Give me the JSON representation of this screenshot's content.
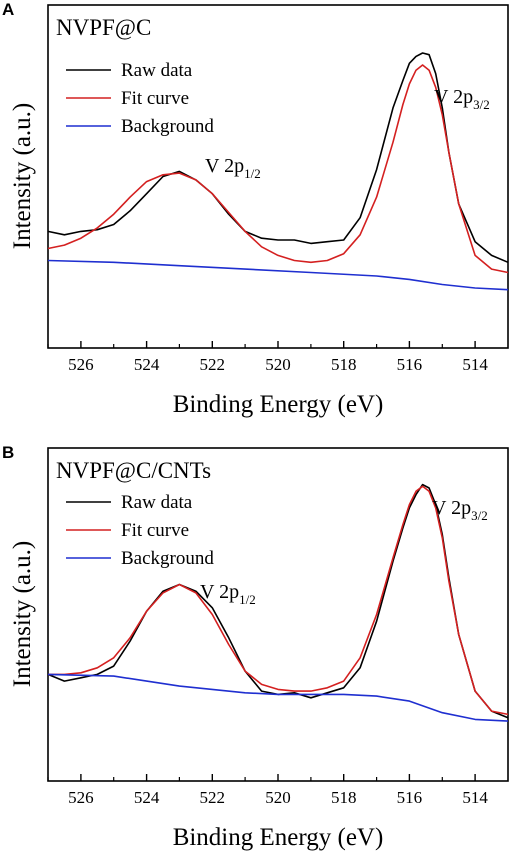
{
  "colors": {
    "raw": "#000000",
    "fit": "#d42020",
    "background": "#1f2fd0",
    "axes": "#000000"
  },
  "chart_data": [
    {
      "type": "line",
      "panel": "A",
      "sample_label": "NVPF@C",
      "xlabel": "Binding Energy (eV)",
      "ylabel": "Intensity (a.u.)",
      "xlim": [
        527,
        513
      ],
      "x_reversed": true,
      "ylim": [
        0,
        1
      ],
      "yticks_shown": false,
      "xticks": [
        526,
        524,
        522,
        520,
        518,
        516,
        514
      ],
      "legend": {
        "position": "top-left",
        "entries": [
          "Raw data",
          "Fit curve",
          "Background"
        ]
      },
      "annotations": [
        {
          "base": "V 2p",
          "sub": "1/2",
          "x": 523.0,
          "y": 0.505
        },
        {
          "base": "V 2p",
          "sub": "3/2",
          "x": 515.6,
          "y": 0.805
        }
      ],
      "series": [
        {
          "name": "Raw data",
          "color_key": "raw",
          "x": [
            527,
            526.5,
            526,
            525.5,
            525,
            524.5,
            524,
            523.5,
            523,
            522.5,
            522,
            521.5,
            521,
            520.5,
            520,
            519.5,
            519,
            518.5,
            518,
            517.5,
            517,
            516.5,
            516.2,
            516,
            515.8,
            515.6,
            515.4,
            515.2,
            515,
            514.8,
            514.5,
            514,
            513.5,
            513
          ],
          "y": [
            0.34,
            0.33,
            0.34,
            0.345,
            0.36,
            0.4,
            0.45,
            0.5,
            0.515,
            0.49,
            0.45,
            0.39,
            0.34,
            0.32,
            0.315,
            0.315,
            0.305,
            0.31,
            0.315,
            0.38,
            0.52,
            0.7,
            0.78,
            0.83,
            0.85,
            0.86,
            0.855,
            0.8,
            0.7,
            0.57,
            0.42,
            0.31,
            0.27,
            0.25
          ]
        },
        {
          "name": "Fit curve",
          "color_key": "fit",
          "x": [
            527,
            526.5,
            526,
            525.5,
            525,
            524.5,
            524,
            523.5,
            523,
            522.5,
            522,
            521.5,
            521,
            520.5,
            520,
            519.5,
            519,
            518.5,
            518,
            517.5,
            517,
            516.5,
            516.2,
            516,
            515.8,
            515.6,
            515.4,
            515.2,
            515,
            514.8,
            514.5,
            514,
            513.5,
            513
          ],
          "y": [
            0.29,
            0.3,
            0.32,
            0.35,
            0.39,
            0.44,
            0.485,
            0.505,
            0.51,
            0.49,
            0.45,
            0.395,
            0.34,
            0.295,
            0.27,
            0.255,
            0.25,
            0.255,
            0.275,
            0.33,
            0.44,
            0.6,
            0.71,
            0.77,
            0.81,
            0.825,
            0.81,
            0.76,
            0.68,
            0.57,
            0.42,
            0.27,
            0.23,
            0.22
          ]
        },
        {
          "name": "Background",
          "color_key": "background",
          "x": [
            527,
            525,
            523,
            521,
            519,
            517,
            516,
            515,
            514,
            513
          ],
          "y": [
            0.255,
            0.25,
            0.24,
            0.23,
            0.22,
            0.21,
            0.2,
            0.185,
            0.175,
            0.17
          ]
        }
      ]
    },
    {
      "type": "line",
      "panel": "B",
      "sample_label": "NVPF@C/CNTs",
      "xlabel": "Binding Energy (eV)",
      "ylabel": "Intensity (a.u.)",
      "xlim": [
        527,
        513
      ],
      "x_reversed": true,
      "ylim": [
        0,
        1
      ],
      "yticks_shown": false,
      "xticks": [
        526,
        524,
        522,
        520,
        518,
        516,
        514
      ],
      "legend": {
        "position": "top-left",
        "entries": [
          "Raw data",
          "Fit curve",
          "Background"
        ]
      },
      "annotations": [
        {
          "base": "V 2p",
          "sub": "1/2",
          "x": 523.0,
          "y": 0.6
        },
        {
          "base": "V 2p",
          "sub": "3/2",
          "x": 515.6,
          "y": 0.9
        }
      ],
      "series": [
        {
          "name": "Raw data",
          "color_key": "raw",
          "x": [
            527,
            526.5,
            526,
            525.5,
            525,
            524.5,
            524,
            523.5,
            523,
            522.5,
            522,
            521.5,
            521,
            520.5,
            520,
            519.5,
            519,
            518.5,
            518,
            517.5,
            517,
            516.5,
            516.2,
            516,
            515.8,
            515.6,
            515.4,
            515.2,
            515,
            514.8,
            514.5,
            514,
            513.5,
            513
          ],
          "y": [
            0.32,
            0.3,
            0.31,
            0.32,
            0.345,
            0.42,
            0.51,
            0.57,
            0.59,
            0.57,
            0.52,
            0.43,
            0.33,
            0.27,
            0.26,
            0.265,
            0.25,
            0.265,
            0.28,
            0.34,
            0.48,
            0.66,
            0.76,
            0.82,
            0.86,
            0.89,
            0.88,
            0.83,
            0.74,
            0.61,
            0.44,
            0.27,
            0.21,
            0.19
          ]
        },
        {
          "name": "Fit curve",
          "color_key": "fit",
          "x": [
            527,
            526.5,
            526,
            525.5,
            525,
            524.5,
            524,
            523.5,
            523,
            522.5,
            522,
            521.5,
            521,
            520.5,
            520,
            519.5,
            519,
            518.5,
            518,
            517.5,
            517,
            516.5,
            516.2,
            516,
            515.8,
            515.6,
            515.4,
            515.2,
            515,
            514.8,
            514.5,
            514,
            513.5,
            513
          ],
          "y": [
            0.32,
            0.32,
            0.325,
            0.34,
            0.37,
            0.43,
            0.51,
            0.565,
            0.59,
            0.565,
            0.5,
            0.41,
            0.33,
            0.29,
            0.275,
            0.27,
            0.27,
            0.28,
            0.3,
            0.37,
            0.5,
            0.67,
            0.77,
            0.83,
            0.87,
            0.885,
            0.87,
            0.82,
            0.73,
            0.6,
            0.44,
            0.27,
            0.21,
            0.2
          ]
        },
        {
          "name": "Background",
          "color_key": "background",
          "x": [
            527,
            525,
            524,
            523,
            522,
            521,
            520,
            519,
            518,
            517,
            516,
            515,
            514,
            513
          ],
          "y": [
            0.32,
            0.315,
            0.3,
            0.285,
            0.275,
            0.265,
            0.26,
            0.26,
            0.26,
            0.255,
            0.24,
            0.205,
            0.185,
            0.18
          ]
        }
      ]
    }
  ]
}
